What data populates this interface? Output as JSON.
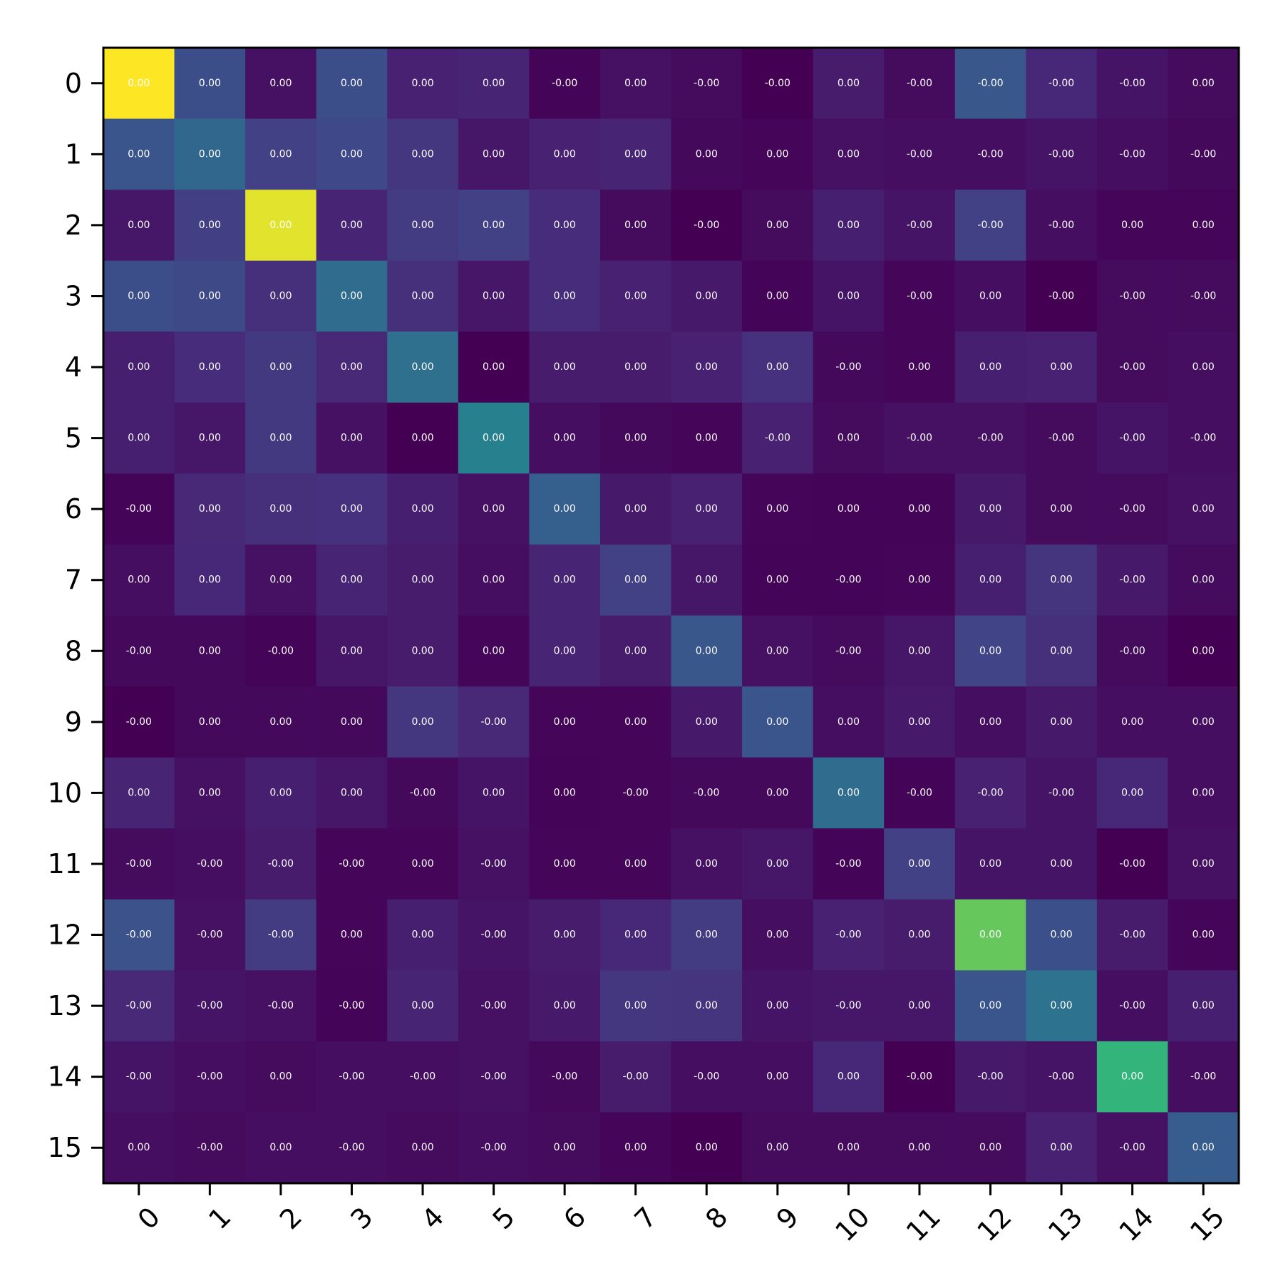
{
  "chart_data": {
    "type": "heatmap",
    "title": "",
    "xlabel": "",
    "ylabel": "",
    "colormap": "viridis",
    "grid": false,
    "legend": "none",
    "x_categories": [
      "0",
      "1",
      "2",
      "3",
      "4",
      "5",
      "6",
      "7",
      "8",
      "9",
      "10",
      "11",
      "12",
      "13",
      "14",
      "15"
    ],
    "y_categories": [
      "0",
      "1",
      "2",
      "3",
      "4",
      "5",
      "6",
      "7",
      "8",
      "9",
      "10",
      "11",
      "12",
      "13",
      "14",
      "15"
    ],
    "cell_labels": [
      [
        "0.00",
        "0.00",
        "0.00",
        "0.00",
        "0.00",
        "0.00",
        "-0.00",
        "0.00",
        "-0.00",
        "-0.00",
        "0.00",
        "-0.00",
        "-0.00",
        "-0.00",
        "-0.00",
        "0.00"
      ],
      [
        "0.00",
        "0.00",
        "0.00",
        "0.00",
        "0.00",
        "0.00",
        "0.00",
        "0.00",
        "0.00",
        "0.00",
        "0.00",
        "-0.00",
        "-0.00",
        "-0.00",
        "-0.00",
        "-0.00"
      ],
      [
        "0.00",
        "0.00",
        "0.00",
        "0.00",
        "0.00",
        "0.00",
        "0.00",
        "0.00",
        "-0.00",
        "0.00",
        "0.00",
        "-0.00",
        "-0.00",
        "-0.00",
        "0.00",
        "0.00"
      ],
      [
        "0.00",
        "0.00",
        "0.00",
        "0.00",
        "0.00",
        "0.00",
        "0.00",
        "0.00",
        "0.00",
        "0.00",
        "0.00",
        "-0.00",
        "0.00",
        "-0.00",
        "-0.00",
        "-0.00"
      ],
      [
        "0.00",
        "0.00",
        "0.00",
        "0.00",
        "0.00",
        "0.00",
        "0.00",
        "0.00",
        "0.00",
        "0.00",
        "-0.00",
        "0.00",
        "0.00",
        "0.00",
        "-0.00",
        "0.00"
      ],
      [
        "0.00",
        "0.00",
        "0.00",
        "0.00",
        "0.00",
        "0.00",
        "0.00",
        "0.00",
        "0.00",
        "-0.00",
        "0.00",
        "-0.00",
        "-0.00",
        "-0.00",
        "-0.00",
        "-0.00"
      ],
      [
        "-0.00",
        "0.00",
        "0.00",
        "0.00",
        "0.00",
        "0.00",
        "0.00",
        "0.00",
        "0.00",
        "0.00",
        "0.00",
        "0.00",
        "0.00",
        "0.00",
        "-0.00",
        "0.00"
      ],
      [
        "0.00",
        "0.00",
        "0.00",
        "0.00",
        "0.00",
        "0.00",
        "0.00",
        "0.00",
        "0.00",
        "0.00",
        "-0.00",
        "0.00",
        "0.00",
        "0.00",
        "-0.00",
        "0.00"
      ],
      [
        "-0.00",
        "0.00",
        "-0.00",
        "0.00",
        "0.00",
        "0.00",
        "0.00",
        "0.00",
        "0.00",
        "0.00",
        "-0.00",
        "0.00",
        "0.00",
        "0.00",
        "-0.00",
        "0.00"
      ],
      [
        "-0.00",
        "0.00",
        "0.00",
        "0.00",
        "0.00",
        "-0.00",
        "0.00",
        "0.00",
        "0.00",
        "0.00",
        "0.00",
        "0.00",
        "0.00",
        "0.00",
        "0.00",
        "0.00"
      ],
      [
        "0.00",
        "0.00",
        "0.00",
        "0.00",
        "-0.00",
        "0.00",
        "0.00",
        "-0.00",
        "-0.00",
        "0.00",
        "0.00",
        "-0.00",
        "-0.00",
        "-0.00",
        "0.00",
        "0.00"
      ],
      [
        "-0.00",
        "-0.00",
        "-0.00",
        "-0.00",
        "0.00",
        "-0.00",
        "0.00",
        "0.00",
        "0.00",
        "0.00",
        "-0.00",
        "0.00",
        "0.00",
        "0.00",
        "-0.00",
        "0.00"
      ],
      [
        "-0.00",
        "-0.00",
        "-0.00",
        "0.00",
        "0.00",
        "-0.00",
        "0.00",
        "0.00",
        "0.00",
        "0.00",
        "-0.00",
        "0.00",
        "0.00",
        "0.00",
        "-0.00",
        "0.00"
      ],
      [
        "-0.00",
        "-0.00",
        "-0.00",
        "-0.00",
        "0.00",
        "-0.00",
        "0.00",
        "0.00",
        "0.00",
        "0.00",
        "-0.00",
        "0.00",
        "0.00",
        "0.00",
        "-0.00",
        "0.00"
      ],
      [
        "-0.00",
        "-0.00",
        "0.00",
        "-0.00",
        "-0.00",
        "-0.00",
        "-0.00",
        "-0.00",
        "-0.00",
        "0.00",
        "0.00",
        "-0.00",
        "-0.00",
        "-0.00",
        "0.00",
        "-0.00"
      ],
      [
        "0.00",
        "-0.00",
        "0.00",
        "-0.00",
        "0.00",
        "-0.00",
        "0.00",
        "0.00",
        "0.00",
        "0.00",
        "0.00",
        "0.00",
        "0.00",
        "0.00",
        "-0.00",
        "0.00"
      ]
    ],
    "intensity": [
      [
        1.0,
        0.3,
        0.06,
        0.3,
        0.12,
        0.13,
        0.01,
        0.06,
        0.04,
        0.0,
        0.1,
        0.04,
        0.34,
        0.14,
        0.07,
        0.04
      ],
      [
        0.33,
        0.42,
        0.24,
        0.27,
        0.2,
        0.08,
        0.12,
        0.13,
        0.03,
        0.02,
        0.06,
        0.05,
        0.05,
        0.07,
        0.05,
        0.03
      ],
      [
        0.08,
        0.23,
        0.97,
        0.13,
        0.22,
        0.24,
        0.16,
        0.04,
        0.0,
        0.04,
        0.11,
        0.07,
        0.24,
        0.05,
        0.02,
        0.02
      ],
      [
        0.3,
        0.28,
        0.17,
        0.44,
        0.17,
        0.08,
        0.16,
        0.12,
        0.09,
        0.01,
        0.07,
        0.02,
        0.05,
        0.0,
        0.04,
        0.04
      ],
      [
        0.11,
        0.16,
        0.21,
        0.15,
        0.46,
        0.0,
        0.1,
        0.1,
        0.12,
        0.18,
        0.03,
        0.02,
        0.11,
        0.12,
        0.04,
        0.05
      ],
      [
        0.11,
        0.08,
        0.21,
        0.06,
        0.0,
        0.54,
        0.05,
        0.03,
        0.02,
        0.12,
        0.04,
        0.06,
        0.06,
        0.04,
        0.07,
        0.05
      ],
      [
        0.01,
        0.15,
        0.17,
        0.18,
        0.11,
        0.06,
        0.38,
        0.09,
        0.12,
        0.02,
        0.01,
        0.01,
        0.09,
        0.04,
        0.04,
        0.06
      ],
      [
        0.05,
        0.14,
        0.06,
        0.13,
        0.1,
        0.05,
        0.13,
        0.24,
        0.08,
        0.01,
        0.01,
        0.02,
        0.11,
        0.19,
        0.09,
        0.04
      ],
      [
        0.03,
        0.03,
        0.01,
        0.08,
        0.1,
        0.02,
        0.13,
        0.1,
        0.34,
        0.06,
        0.04,
        0.08,
        0.25,
        0.17,
        0.04,
        0.0
      ],
      [
        0.0,
        0.03,
        0.03,
        0.03,
        0.2,
        0.15,
        0.02,
        0.02,
        0.09,
        0.33,
        0.05,
        0.09,
        0.05,
        0.09,
        0.05,
        0.05
      ],
      [
        0.13,
        0.06,
        0.11,
        0.08,
        0.03,
        0.07,
        0.01,
        0.02,
        0.03,
        0.03,
        0.44,
        0.01,
        0.12,
        0.07,
        0.14,
        0.05
      ],
      [
        0.04,
        0.05,
        0.1,
        0.02,
        0.02,
        0.06,
        0.02,
        0.02,
        0.06,
        0.08,
        0.01,
        0.24,
        0.07,
        0.07,
        0.0,
        0.06
      ],
      [
        0.32,
        0.06,
        0.22,
        0.02,
        0.11,
        0.07,
        0.1,
        0.14,
        0.22,
        0.05,
        0.12,
        0.1,
        0.82,
        0.31,
        0.1,
        0.02
      ],
      [
        0.15,
        0.07,
        0.06,
        0.01,
        0.13,
        0.06,
        0.09,
        0.2,
        0.19,
        0.07,
        0.08,
        0.08,
        0.33,
        0.47,
        0.05,
        0.11
      ],
      [
        0.07,
        0.05,
        0.04,
        0.05,
        0.05,
        0.06,
        0.03,
        0.1,
        0.05,
        0.05,
        0.14,
        0.0,
        0.09,
        0.07,
        0.74,
        0.05
      ],
      [
        0.05,
        0.04,
        0.05,
        0.05,
        0.04,
        0.05,
        0.04,
        0.02,
        0.0,
        0.04,
        0.04,
        0.04,
        0.04,
        0.12,
        0.06,
        0.37
      ]
    ]
  }
}
